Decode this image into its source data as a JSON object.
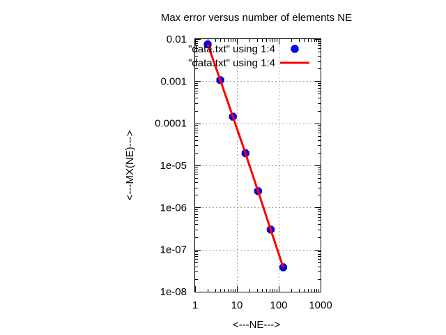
{
  "chart_data": {
    "type": "scatter",
    "title": "Max error versus number of elements NE",
    "xlabel": "<---NE--->",
    "ylabel": "<---MX(NE)--->",
    "x_scale": "log",
    "y_scale": "log",
    "xlim": [
      1,
      1000
    ],
    "ylim": [
      1e-08,
      0.01
    ],
    "x_ticks": [
      "1",
      "10",
      "100",
      "1000"
    ],
    "y_ticks": [
      "0.01",
      "0.001",
      "0.0001",
      "1e-05",
      "1e-06",
      "1e-07",
      "1e-08"
    ],
    "grid": true,
    "legend_position": "top-right",
    "series": [
      {
        "name": "\"data.txt\" using 1:4",
        "style": "points",
        "color": "#0000ff",
        "edge_color": "#0000aa",
        "x": [
          2,
          4,
          8,
          16,
          32,
          64,
          128
        ],
        "y": [
          0.0075,
          0.00106,
          0.000144,
          1.95e-05,
          2.45e-06,
          3e-07,
          3.8e-08
        ]
      },
      {
        "name": "\"data.txt\" using 1:4",
        "style": "line",
        "color": "#ff0000",
        "x": [
          2,
          4,
          8,
          16,
          32,
          64,
          128
        ],
        "y": [
          0.0075,
          0.00106,
          0.000144,
          1.95e-05,
          2.45e-06,
          3e-07,
          3.8e-08
        ]
      }
    ]
  }
}
